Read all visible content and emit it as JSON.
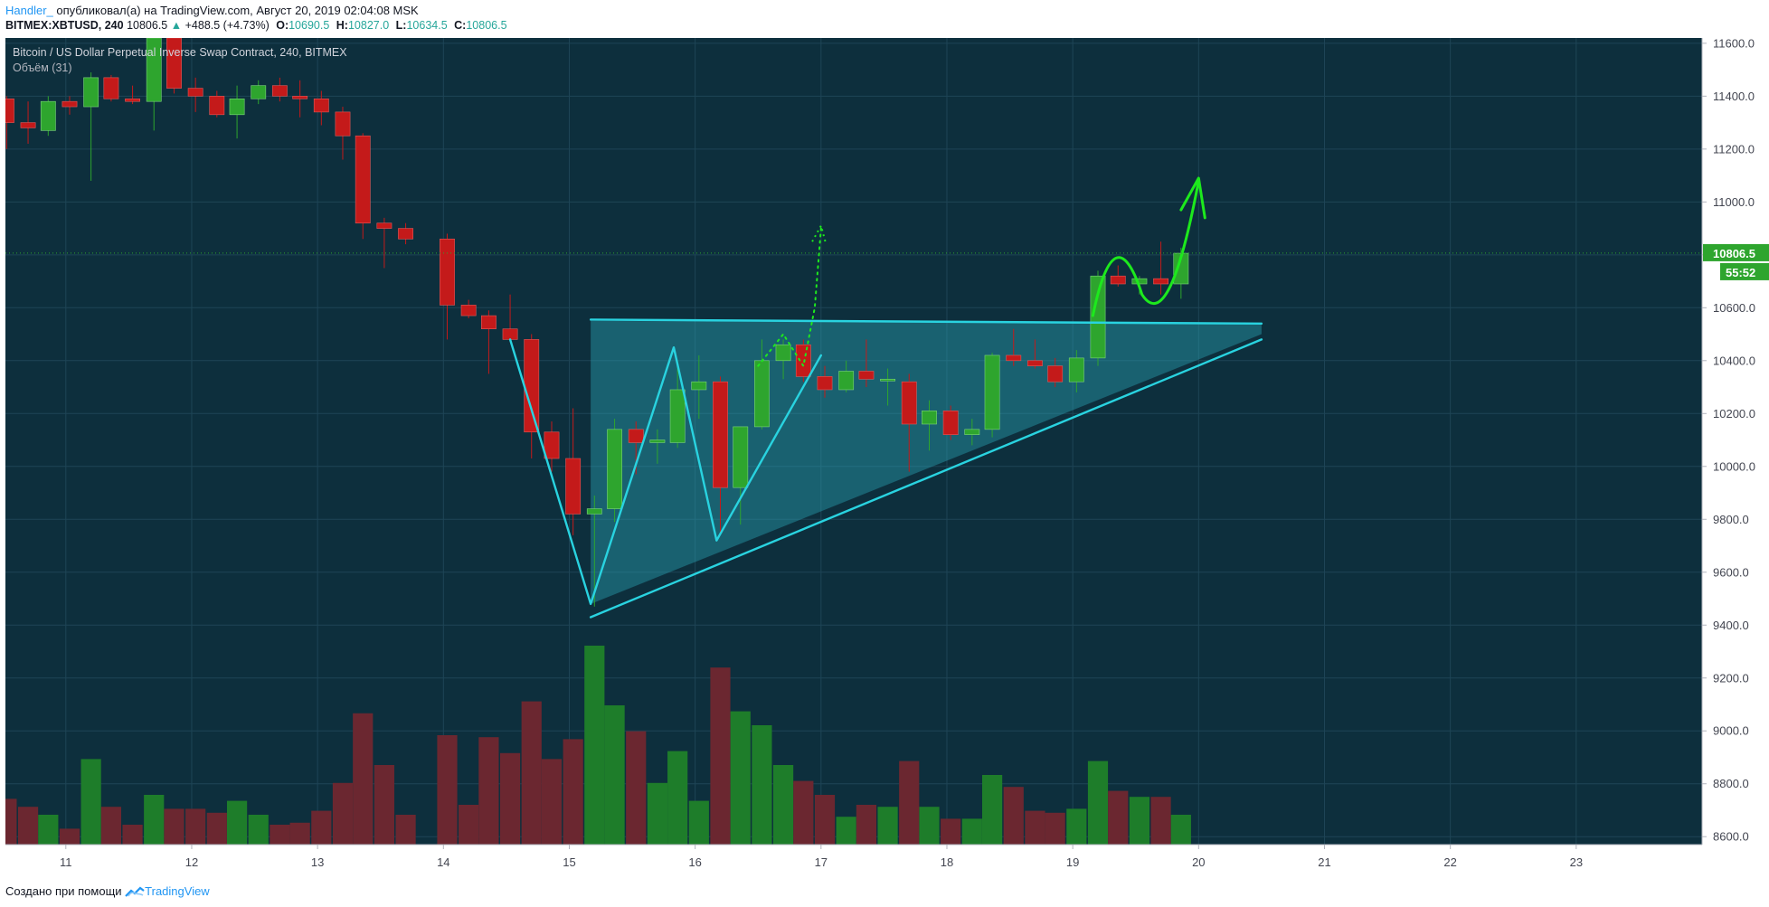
{
  "header": {
    "author": "Handler_",
    "published_text": " опубликовал(а) на TradingView.com, Август 20, 2019 02:04:08 MSK",
    "symbol": "BITMEX:XBTUSD, 240",
    "last": "10806.5",
    "change": "+488.5 (+4.73%)",
    "o_label": "O:",
    "o_value": "10690.5",
    "h_label": "H:",
    "h_value": "10827.0",
    "l_label": "L:",
    "l_value": "10634.5",
    "c_label": "C:",
    "c_value": "10806.5"
  },
  "legend": {
    "title": "Bitcoin / US Dollar Perpetual Inverse Swap Contract, 240, BITMEX",
    "volume": "Объём (31)"
  },
  "footer": {
    "created": "Создано при помощи",
    "brand": "TradingView"
  },
  "colors": {
    "background": "#0d2f3d",
    "grid": "#1e4556",
    "up": "#2ea52e",
    "down": "#c41a1a",
    "vol_up": "#1e7d2a",
    "vol_down": "#6b2730",
    "triangle": "#29d3e0",
    "arrow": "#1de91d"
  },
  "chart_data": {
    "type": "candlestick",
    "title": "Bitcoin / US Dollar Perpetual Inverse Swap Contract, 240, BITMEX",
    "timeframe": "240",
    "x_ticks": [
      "11",
      "12",
      "13",
      "14",
      "15",
      "16",
      "17",
      "18",
      "19",
      "20",
      "21",
      "22",
      "23"
    ],
    "y_ticks": [
      8600,
      8800,
      9000,
      9200,
      9400,
      9600,
      9800,
      10000,
      10200,
      10400,
      10600,
      10800,
      11000,
      11200,
      11400,
      11600
    ],
    "ylim": [
      8570,
      11620
    ],
    "xlim": [
      10.52,
      24.0
    ],
    "last_price_label": "10806.5",
    "countdown_label": "55:52",
    "volume_label": "Объём (31)",
    "volume_max": 100,
    "candles": [
      {
        "t": 10.53,
        "o": 11390,
        "h": 11400,
        "l": 11200,
        "c": 11300,
        "v": 23
      },
      {
        "t": 10.7,
        "o": 11300,
        "h": 11380,
        "l": 11220,
        "c": 11280,
        "v": 19
      },
      {
        "t": 10.86,
        "o": 11270,
        "h": 11400,
        "l": 11250,
        "c": 11380,
        "v": 15
      },
      {
        "t": 11.03,
        "o": 11380,
        "h": 11400,
        "l": 11330,
        "c": 11360,
        "v": 8
      },
      {
        "t": 11.2,
        "o": 11360,
        "h": 11490,
        "l": 11080,
        "c": 11470,
        "v": 43
      },
      {
        "t": 11.36,
        "o": 11470,
        "h": 11480,
        "l": 11380,
        "c": 11390,
        "v": 19
      },
      {
        "t": 11.53,
        "o": 11390,
        "h": 11440,
        "l": 11370,
        "c": 11380,
        "v": 10
      },
      {
        "t": 11.7,
        "o": 11380,
        "h": 11630,
        "l": 11270,
        "c": 11620,
        "v": 25
      },
      {
        "t": 11.86,
        "o": 11620,
        "h": 11620,
        "l": 11410,
        "c": 11430,
        "v": 18
      },
      {
        "t": 12.03,
        "o": 11430,
        "h": 11470,
        "l": 11340,
        "c": 11400,
        "v": 18
      },
      {
        "t": 12.2,
        "o": 11400,
        "h": 11420,
        "l": 11320,
        "c": 11330,
        "v": 16
      },
      {
        "t": 12.36,
        "o": 11330,
        "h": 11440,
        "l": 11240,
        "c": 11390,
        "v": 22
      },
      {
        "t": 12.53,
        "o": 11390,
        "h": 11460,
        "l": 11370,
        "c": 11440,
        "v": 15
      },
      {
        "t": 12.7,
        "o": 11440,
        "h": 11470,
        "l": 11380,
        "c": 11400,
        "v": 10
      },
      {
        "t": 12.86,
        "o": 11400,
        "h": 11460,
        "l": 11320,
        "c": 11390,
        "v": 11
      },
      {
        "t": 13.03,
        "o": 11390,
        "h": 11420,
        "l": 11290,
        "c": 11340,
        "v": 17
      },
      {
        "t": 13.2,
        "o": 11340,
        "h": 11360,
        "l": 11160,
        "c": 11250,
        "v": 31
      },
      {
        "t": 13.36,
        "o": 11250,
        "h": 11260,
        "l": 10860,
        "c": 10920,
        "v": 66
      },
      {
        "t": 13.53,
        "o": 10920,
        "h": 10940,
        "l": 10750,
        "c": 10900,
        "v": 40
      },
      {
        "t": 13.7,
        "o": 10900,
        "h": 10920,
        "l": 10840,
        "c": 10860,
        "v": 15
      },
      {
        "t": 14.03,
        "o": 10860,
        "h": 10880,
        "l": 10480,
        "c": 10610,
        "v": 55
      },
      {
        "t": 14.2,
        "o": 10610,
        "h": 10630,
        "l": 10560,
        "c": 10570,
        "v": 20
      },
      {
        "t": 14.36,
        "o": 10570,
        "h": 10590,
        "l": 10350,
        "c": 10520,
        "v": 54
      },
      {
        "t": 14.53,
        "o": 10520,
        "h": 10650,
        "l": 10470,
        "c": 10480,
        "v": 46
      },
      {
        "t": 14.7,
        "o": 10480,
        "h": 10500,
        "l": 10030,
        "c": 10130,
        "v": 72
      },
      {
        "t": 14.86,
        "o": 10130,
        "h": 10170,
        "l": 9980,
        "c": 10030,
        "v": 43
      },
      {
        "t": 15.03,
        "o": 10030,
        "h": 10220,
        "l": 9740,
        "c": 9820,
        "v": 53
      },
      {
        "t": 15.2,
        "o": 9820,
        "h": 9890,
        "l": 9470,
        "c": 9840,
        "v": 100
      },
      {
        "t": 15.36,
        "o": 9840,
        "h": 10180,
        "l": 9790,
        "c": 10140,
        "v": 70
      },
      {
        "t": 15.53,
        "o": 10140,
        "h": 10170,
        "l": 9970,
        "c": 10090,
        "v": 57
      },
      {
        "t": 15.7,
        "o": 10090,
        "h": 10140,
        "l": 10010,
        "c": 10100,
        "v": 31
      },
      {
        "t": 15.86,
        "o": 10090,
        "h": 10400,
        "l": 10070,
        "c": 10290,
        "v": 47
      },
      {
        "t": 16.03,
        "o": 10290,
        "h": 10420,
        "l": 10180,
        "c": 10320,
        "v": 22
      },
      {
        "t": 16.2,
        "o": 10320,
        "h": 10340,
        "l": 9740,
        "c": 9920,
        "v": 89
      },
      {
        "t": 16.36,
        "o": 9920,
        "h": 10150,
        "l": 9780,
        "c": 10150,
        "v": 67
      },
      {
        "t": 16.53,
        "o": 10150,
        "h": 10480,
        "l": 10140,
        "c": 10400,
        "v": 60
      },
      {
        "t": 16.7,
        "o": 10400,
        "h": 10480,
        "l": 10330,
        "c": 10460,
        "v": 40
      },
      {
        "t": 16.86,
        "o": 10460,
        "h": 10480,
        "l": 10320,
        "c": 10340,
        "v": 32
      },
      {
        "t": 17.03,
        "o": 10340,
        "h": 10380,
        "l": 10260,
        "c": 10290,
        "v": 25
      },
      {
        "t": 17.2,
        "o": 10290,
        "h": 10400,
        "l": 10280,
        "c": 10360,
        "v": 14
      },
      {
        "t": 17.36,
        "o": 10360,
        "h": 10480,
        "l": 10300,
        "c": 10330,
        "v": 20
      },
      {
        "t": 17.53,
        "o": 10330,
        "h": 10370,
        "l": 10230,
        "c": 10330,
        "v": 19
      },
      {
        "t": 17.7,
        "o": 10320,
        "h": 10350,
        "l": 9980,
        "c": 10160,
        "v": 42
      },
      {
        "t": 17.86,
        "o": 10160,
        "h": 10250,
        "l": 10060,
        "c": 10210,
        "v": 19
      },
      {
        "t": 18.03,
        "o": 10210,
        "h": 10230,
        "l": 10100,
        "c": 10120,
        "v": 13
      },
      {
        "t": 18.2,
        "o": 10120,
        "h": 10180,
        "l": 10080,
        "c": 10140,
        "v": 13
      },
      {
        "t": 18.36,
        "o": 10140,
        "h": 10430,
        "l": 10110,
        "c": 10420,
        "v": 35
      },
      {
        "t": 18.53,
        "o": 10420,
        "h": 10520,
        "l": 10380,
        "c": 10400,
        "v": 29
      },
      {
        "t": 18.7,
        "o": 10400,
        "h": 10480,
        "l": 10370,
        "c": 10380,
        "v": 17
      },
      {
        "t": 18.86,
        "o": 10380,
        "h": 10410,
        "l": 10300,
        "c": 10320,
        "v": 16
      },
      {
        "t": 19.03,
        "o": 10320,
        "h": 10440,
        "l": 10280,
        "c": 10410,
        "v": 18
      },
      {
        "t": 19.2,
        "o": 10410,
        "h": 10740,
        "l": 10380,
        "c": 10720,
        "v": 42
      },
      {
        "t": 19.36,
        "o": 10720,
        "h": 10760,
        "l": 10680,
        "c": 10690,
        "v": 27
      },
      {
        "t": 19.53,
        "o": 10690,
        "h": 10720,
        "l": 10650,
        "c": 10710,
        "v": 24
      },
      {
        "t": 19.7,
        "o": 10710,
        "h": 10850,
        "l": 10650,
        "c": 10690,
        "v": 24
      },
      {
        "t": 19.86,
        "o": 10690,
        "h": 10827,
        "l": 10634,
        "c": 10806,
        "v": 15
      }
    ]
  }
}
